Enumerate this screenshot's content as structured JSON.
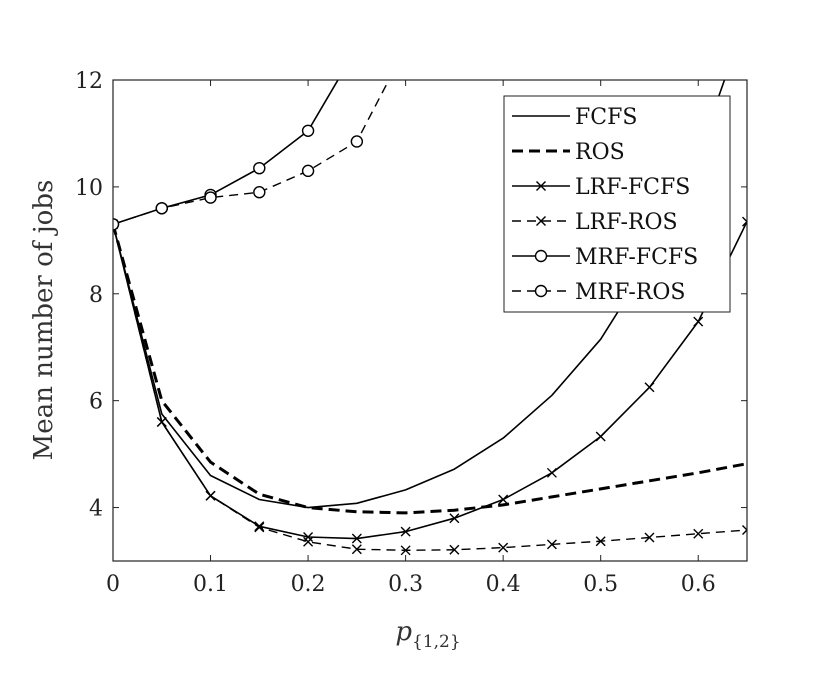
{
  "chart_data": {
    "type": "line",
    "title": "",
    "xlabel": "p",
    "xlabel_subscript": "{1,2}",
    "ylabel": "Mean number of jobs",
    "xlim": [
      0,
      0.65
    ],
    "ylim": [
      3,
      12
    ],
    "xticks": [
      0,
      0.1,
      0.2,
      0.3,
      0.4,
      0.5,
      0.6
    ],
    "xtick_labels": [
      "0",
      "0.1",
      "0.2",
      "0.3",
      "0.4",
      "0.5",
      "0.6"
    ],
    "yticks": [
      4,
      6,
      8,
      10,
      12
    ],
    "ytick_labels": [
      "4",
      "6",
      "8",
      "10",
      "12"
    ],
    "grid": false,
    "legend_position": "top-right",
    "series": [
      {
        "name": "FCFS",
        "dash": "solid",
        "width": 1.6,
        "marker": "none",
        "x": [
          0,
          0.05,
          0.1,
          0.15,
          0.2,
          0.25,
          0.3,
          0.35,
          0.4,
          0.45,
          0.5,
          0.55,
          0.6,
          0.65
        ],
        "y": [
          9.3,
          5.75,
          4.6,
          4.15,
          4.0,
          4.08,
          4.33,
          4.72,
          5.3,
          6.1,
          7.15,
          8.6,
          10.6,
          13.2
        ]
      },
      {
        "name": "ROS",
        "dash": "bold-dash",
        "width": 3.0,
        "marker": "none",
        "x": [
          0,
          0.05,
          0.1,
          0.15,
          0.2,
          0.25,
          0.3,
          0.35,
          0.4,
          0.45,
          0.5,
          0.55,
          0.6,
          0.65
        ],
        "y": [
          9.3,
          6.0,
          4.85,
          4.25,
          4.0,
          3.92,
          3.9,
          3.95,
          4.05,
          4.2,
          4.35,
          4.5,
          4.65,
          4.82
        ]
      },
      {
        "name": "LRF-FCFS",
        "dash": "solid",
        "width": 1.6,
        "marker": "x",
        "x": [
          0,
          0.05,
          0.1,
          0.15,
          0.2,
          0.25,
          0.3,
          0.35,
          0.4,
          0.45,
          0.5,
          0.55,
          0.6,
          0.65
        ],
        "y": [
          9.3,
          5.6,
          4.22,
          3.65,
          3.45,
          3.42,
          3.55,
          3.8,
          4.15,
          4.65,
          5.33,
          6.25,
          7.48,
          9.35
        ]
      },
      {
        "name": "LRF-ROS",
        "dash": "dash",
        "width": 1.4,
        "marker": "x",
        "x": [
          0,
          0.05,
          0.1,
          0.15,
          0.2,
          0.25,
          0.3,
          0.35,
          0.4,
          0.45,
          0.5,
          0.55,
          0.6,
          0.65
        ],
        "y": [
          9.3,
          5.6,
          4.22,
          3.63,
          3.36,
          3.22,
          3.2,
          3.21,
          3.25,
          3.31,
          3.37,
          3.44,
          3.51,
          3.58
        ]
      },
      {
        "name": "MRF-FCFS",
        "dash": "solid",
        "width": 1.6,
        "marker": "circle",
        "x": [
          0,
          0.05,
          0.1,
          0.15,
          0.2,
          0.25
        ],
        "y": [
          9.3,
          9.6,
          9.85,
          10.35,
          11.05,
          12.6
        ]
      },
      {
        "name": "MRF-ROS",
        "dash": "dash",
        "width": 1.4,
        "marker": "circle",
        "x": [
          0,
          0.05,
          0.1,
          0.15,
          0.2,
          0.25,
          0.3
        ],
        "y": [
          9.3,
          9.6,
          9.8,
          9.9,
          10.3,
          10.85,
          12.6
        ]
      }
    ]
  }
}
